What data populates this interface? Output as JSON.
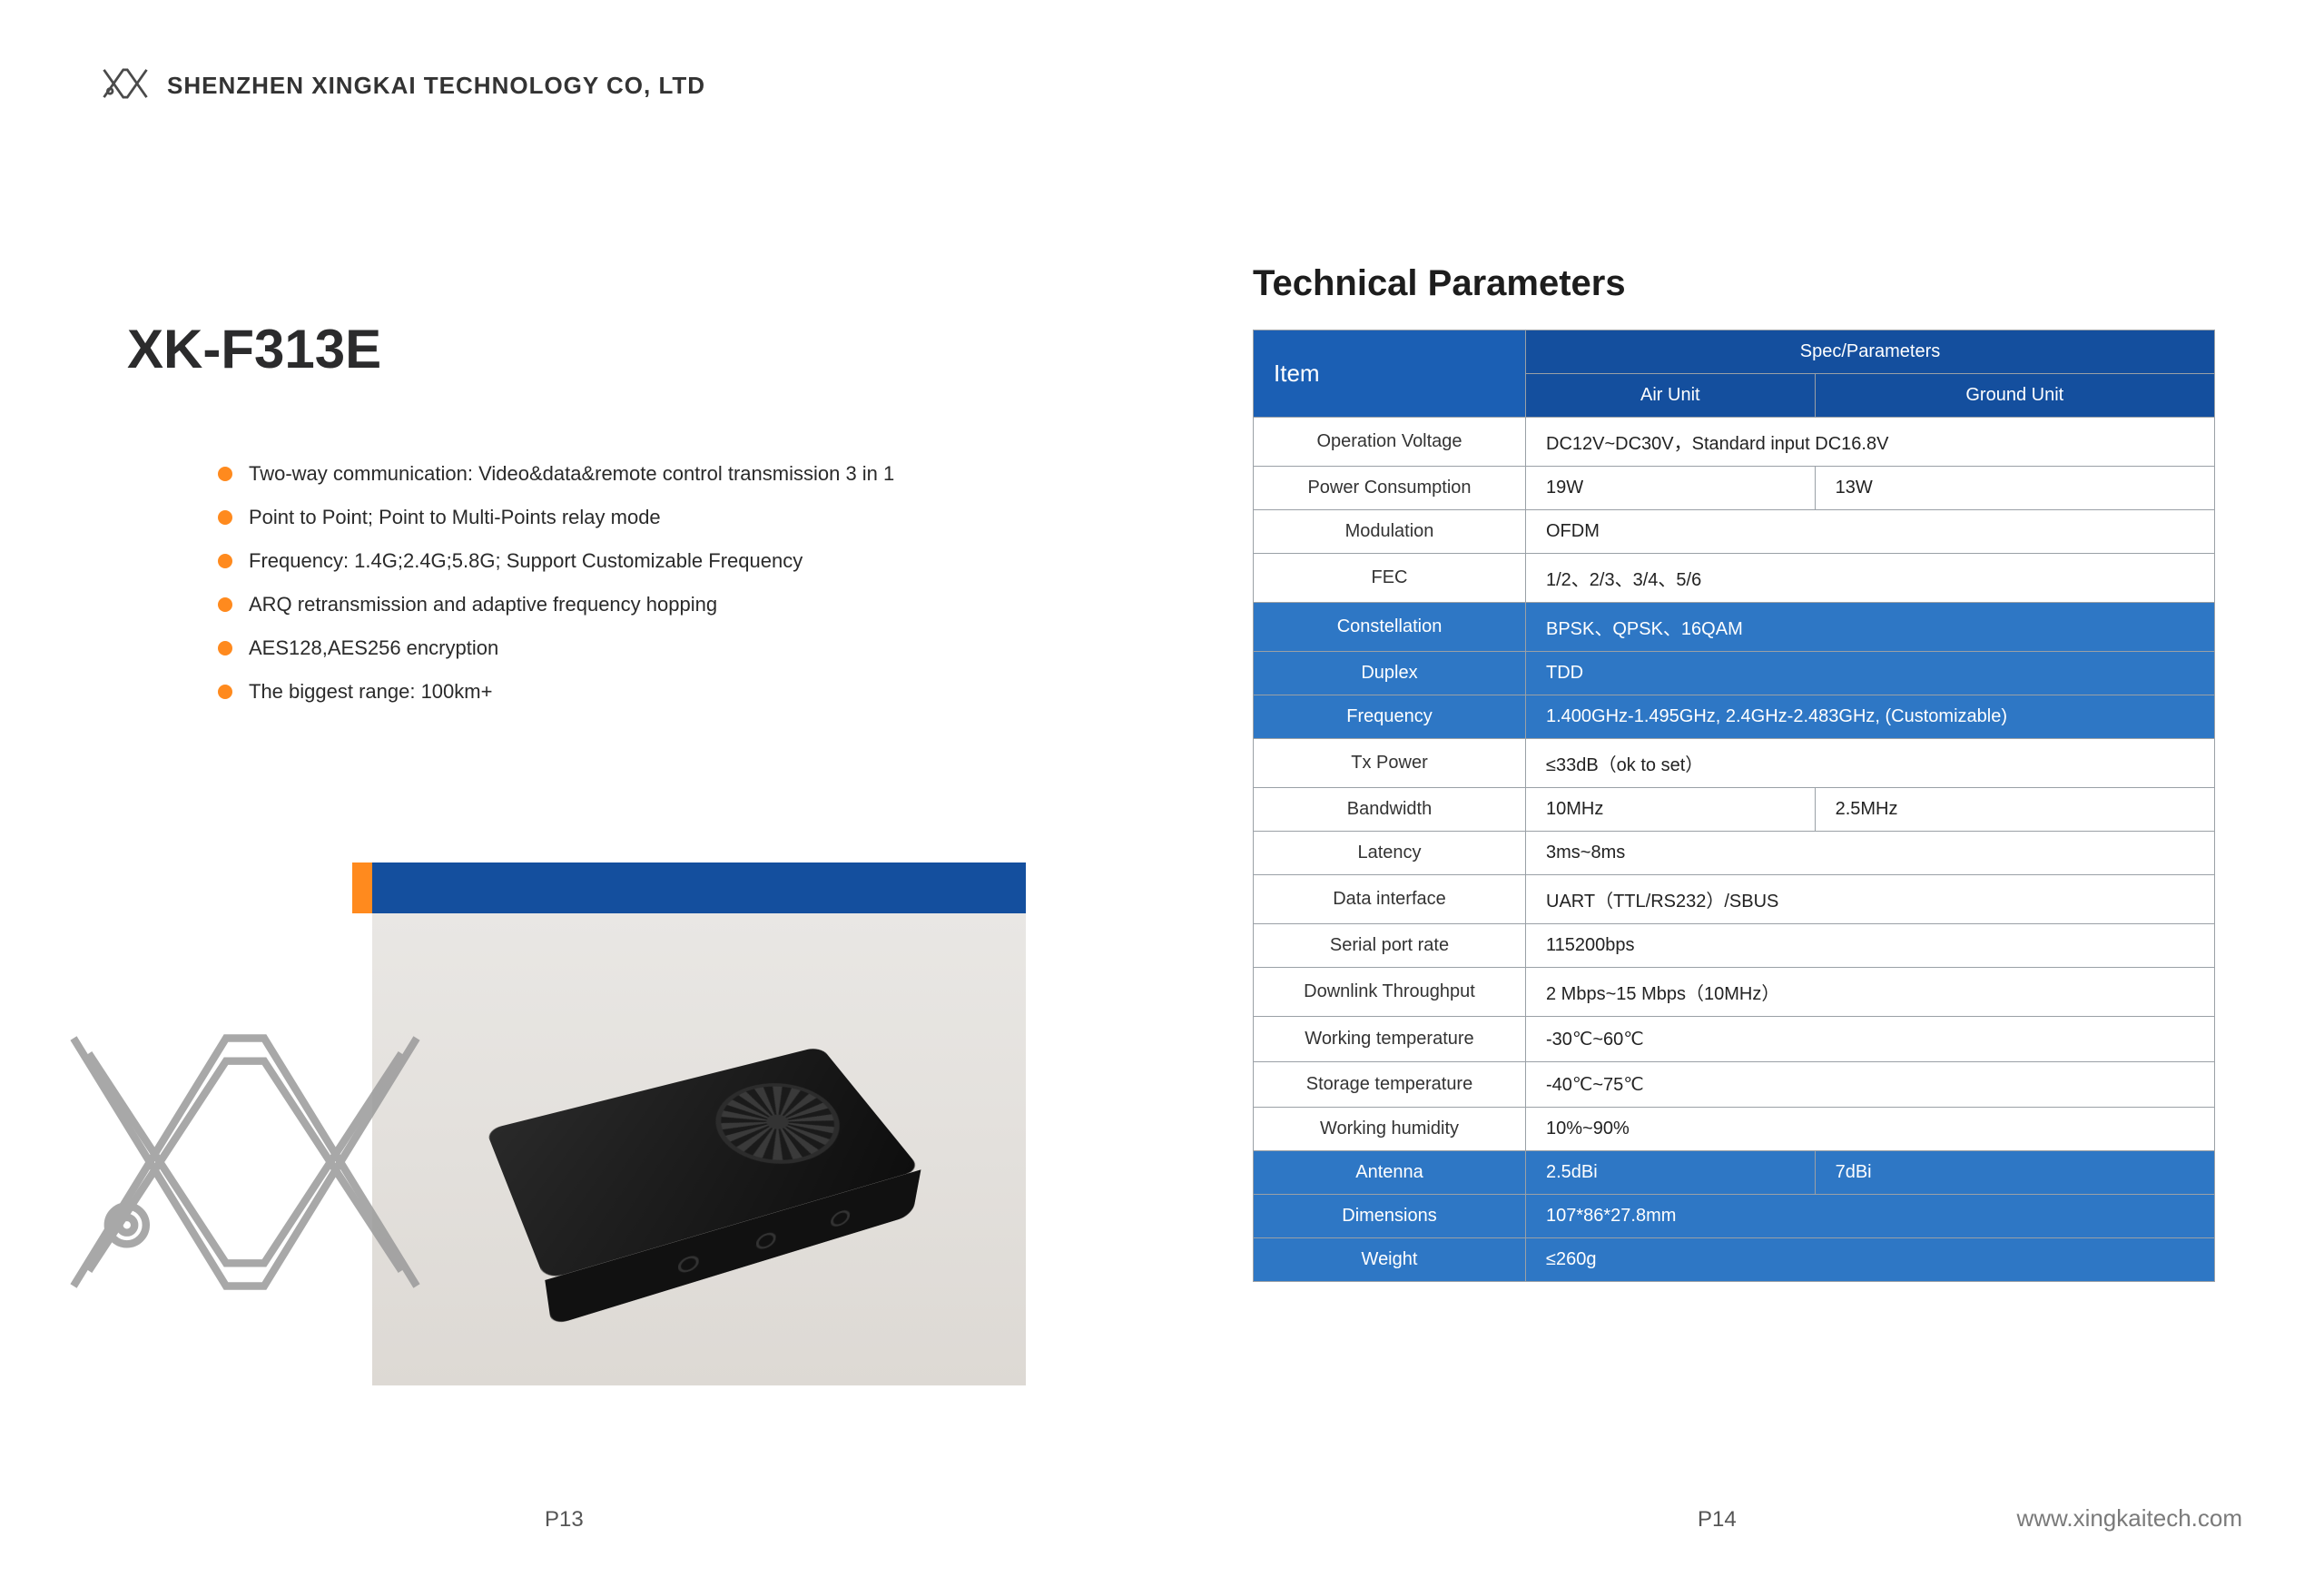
{
  "company_name": "SHENZHEN XINGKAI TECHNOLOGY CO, LTD",
  "product_title": "XK-F313E",
  "bullet_color": "#ff8a1e",
  "brand_blue": "#144f9e",
  "features": [
    "Two-way communication: Video&data&remote control transmission 3 in 1",
    "Point to Point; Point to Multi-Points relay mode",
    "Frequency: 1.4G;2.4G;5.8G; Support Customizable Frequency",
    "ARQ retransmission and adaptive frequency hopping",
    "AES128,AES256 encryption",
    "The biggest range: 100km+"
  ],
  "tech_params_title": "Technical Parameters",
  "table": {
    "item_header": "Item",
    "spec_header": "Spec/Parameters",
    "air_unit": "Air Unit",
    "ground_unit": "Ground Unit",
    "rows": [
      {
        "label": "Operation Voltage",
        "air": "DC12V~DC30V，Standard input DC16.8V",
        "ground": null,
        "blue": false,
        "span": true
      },
      {
        "label": "Power Consumption",
        "air": "19W",
        "ground": "13W",
        "blue": false,
        "span": false
      },
      {
        "label": "Modulation",
        "air": "OFDM",
        "ground": null,
        "blue": false,
        "span": true
      },
      {
        "label": "FEC",
        "air": "1/2、2/3、3/4、5/6",
        "ground": null,
        "blue": false,
        "span": true
      },
      {
        "label": "Constellation",
        "air": "BPSK、QPSK、16QAM",
        "ground": null,
        "blue": true,
        "span": true
      },
      {
        "label": "Duplex",
        "air": "TDD",
        "ground": null,
        "blue": true,
        "span": true
      },
      {
        "label": "Frequency",
        "air": "1.400GHz-1.495GHz, 2.4GHz-2.483GHz, (Customizable)",
        "ground": null,
        "blue": true,
        "span": true
      },
      {
        "label": "Tx Power",
        "air": "≤33dB（ok to set）",
        "ground": null,
        "blue": false,
        "span": true
      },
      {
        "label": "Bandwidth",
        "air": "10MHz",
        "ground": "2.5MHz",
        "blue": false,
        "span": false
      },
      {
        "label": "Latency",
        "air": "3ms~8ms",
        "ground": null,
        "blue": false,
        "span": true
      },
      {
        "label": "Data interface",
        "air": "UART（TTL/RS232）/SBUS",
        "ground": null,
        "blue": false,
        "span": true
      },
      {
        "label": "Serial port rate",
        "air": "115200bps",
        "ground": null,
        "blue": false,
        "span": true
      },
      {
        "label": "Downlink Throughput",
        "air": "2 Mbps~15 Mbps（10MHz）",
        "ground": null,
        "blue": false,
        "span": true
      },
      {
        "label": "Working temperature",
        "air": "-30℃~60℃",
        "ground": null,
        "blue": false,
        "span": true
      },
      {
        "label": "Storage temperature",
        "air": "-40℃~75℃",
        "ground": null,
        "blue": false,
        "span": true
      },
      {
        "label": "Working humidity",
        "air": "10%~90%",
        "ground": null,
        "blue": false,
        "span": true
      },
      {
        "label": "Antenna",
        "air": "2.5dBi",
        "ground": "7dBi",
        "blue": true,
        "span": false
      },
      {
        "label": "Dimensions",
        "air": "107*86*27.8mm",
        "ground": null,
        "blue": true,
        "span": true
      },
      {
        "label": "Weight",
        "air": "≤260g",
        "ground": null,
        "blue": true,
        "span": true
      }
    ]
  },
  "page_left": "P13",
  "page_right": "P14",
  "website": "www.xingkaitech.com",
  "logo_stroke": "#4a4a4a"
}
